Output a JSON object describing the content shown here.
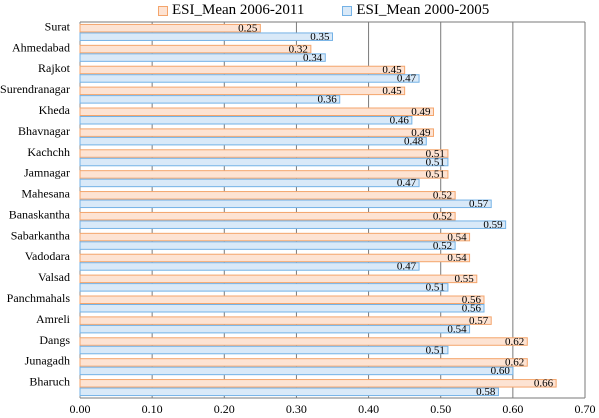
{
  "chart_data": {
    "type": "bar",
    "orientation": "horizontal",
    "categories": [
      "Surat",
      "Ahmedabad",
      "Rajkot",
      "Surendranagar",
      "Kheda",
      "Bhavnagar",
      "Kachchh",
      "Jamnagar",
      "Mahesana",
      "Banaskantha",
      "Sabarkantha",
      "Vadodara",
      "Valsad",
      "Panchmahals",
      "Amreli",
      "Dangs",
      "Junagadh",
      "Bharuch"
    ],
    "series": [
      {
        "name": "ESI_Mean 2006-2011",
        "color": "#f4a56c",
        "fill": "#fde3d3",
        "values": [
          0.25,
          0.32,
          0.45,
          0.45,
          0.49,
          0.49,
          0.51,
          0.51,
          0.52,
          0.52,
          0.54,
          0.54,
          0.55,
          0.56,
          0.57,
          0.62,
          0.62,
          0.66
        ],
        "labels": [
          "0.25",
          "0.32",
          "0.45",
          "0.45",
          "0.49",
          "0.49",
          "0.51",
          "0.51",
          "0.52",
          "0.52",
          "0.54",
          "0.54",
          "0.55",
          "0.56",
          "0.57",
          "0.62",
          "0.62",
          "0.66"
        ]
      },
      {
        "name": "ESI_Mean 2000-2005",
        "color": "#74b2e6",
        "fill": "#d9e9f8",
        "values": [
          0.35,
          0.34,
          0.47,
          0.36,
          0.46,
          0.48,
          0.51,
          0.47,
          0.57,
          0.59,
          0.52,
          0.47,
          0.51,
          0.56,
          0.54,
          0.51,
          0.6,
          0.58
        ],
        "labels": [
          "0.35",
          "0.34",
          "0.47",
          "0.36",
          "0.46",
          "0.48",
          "0.51",
          "0.47",
          "0.57",
          "0.59",
          "0.52",
          "0.47",
          "0.51",
          "0.56",
          "0.54",
          "0.51",
          "0.60",
          "0.58"
        ]
      }
    ],
    "xlim": [
      0,
      0.7
    ],
    "xticks": [
      "0.00",
      "0.10",
      "0.20",
      "0.30",
      "0.40",
      "0.50",
      "0.60",
      "0.70"
    ],
    "grid": true,
    "legend_position": "top"
  }
}
